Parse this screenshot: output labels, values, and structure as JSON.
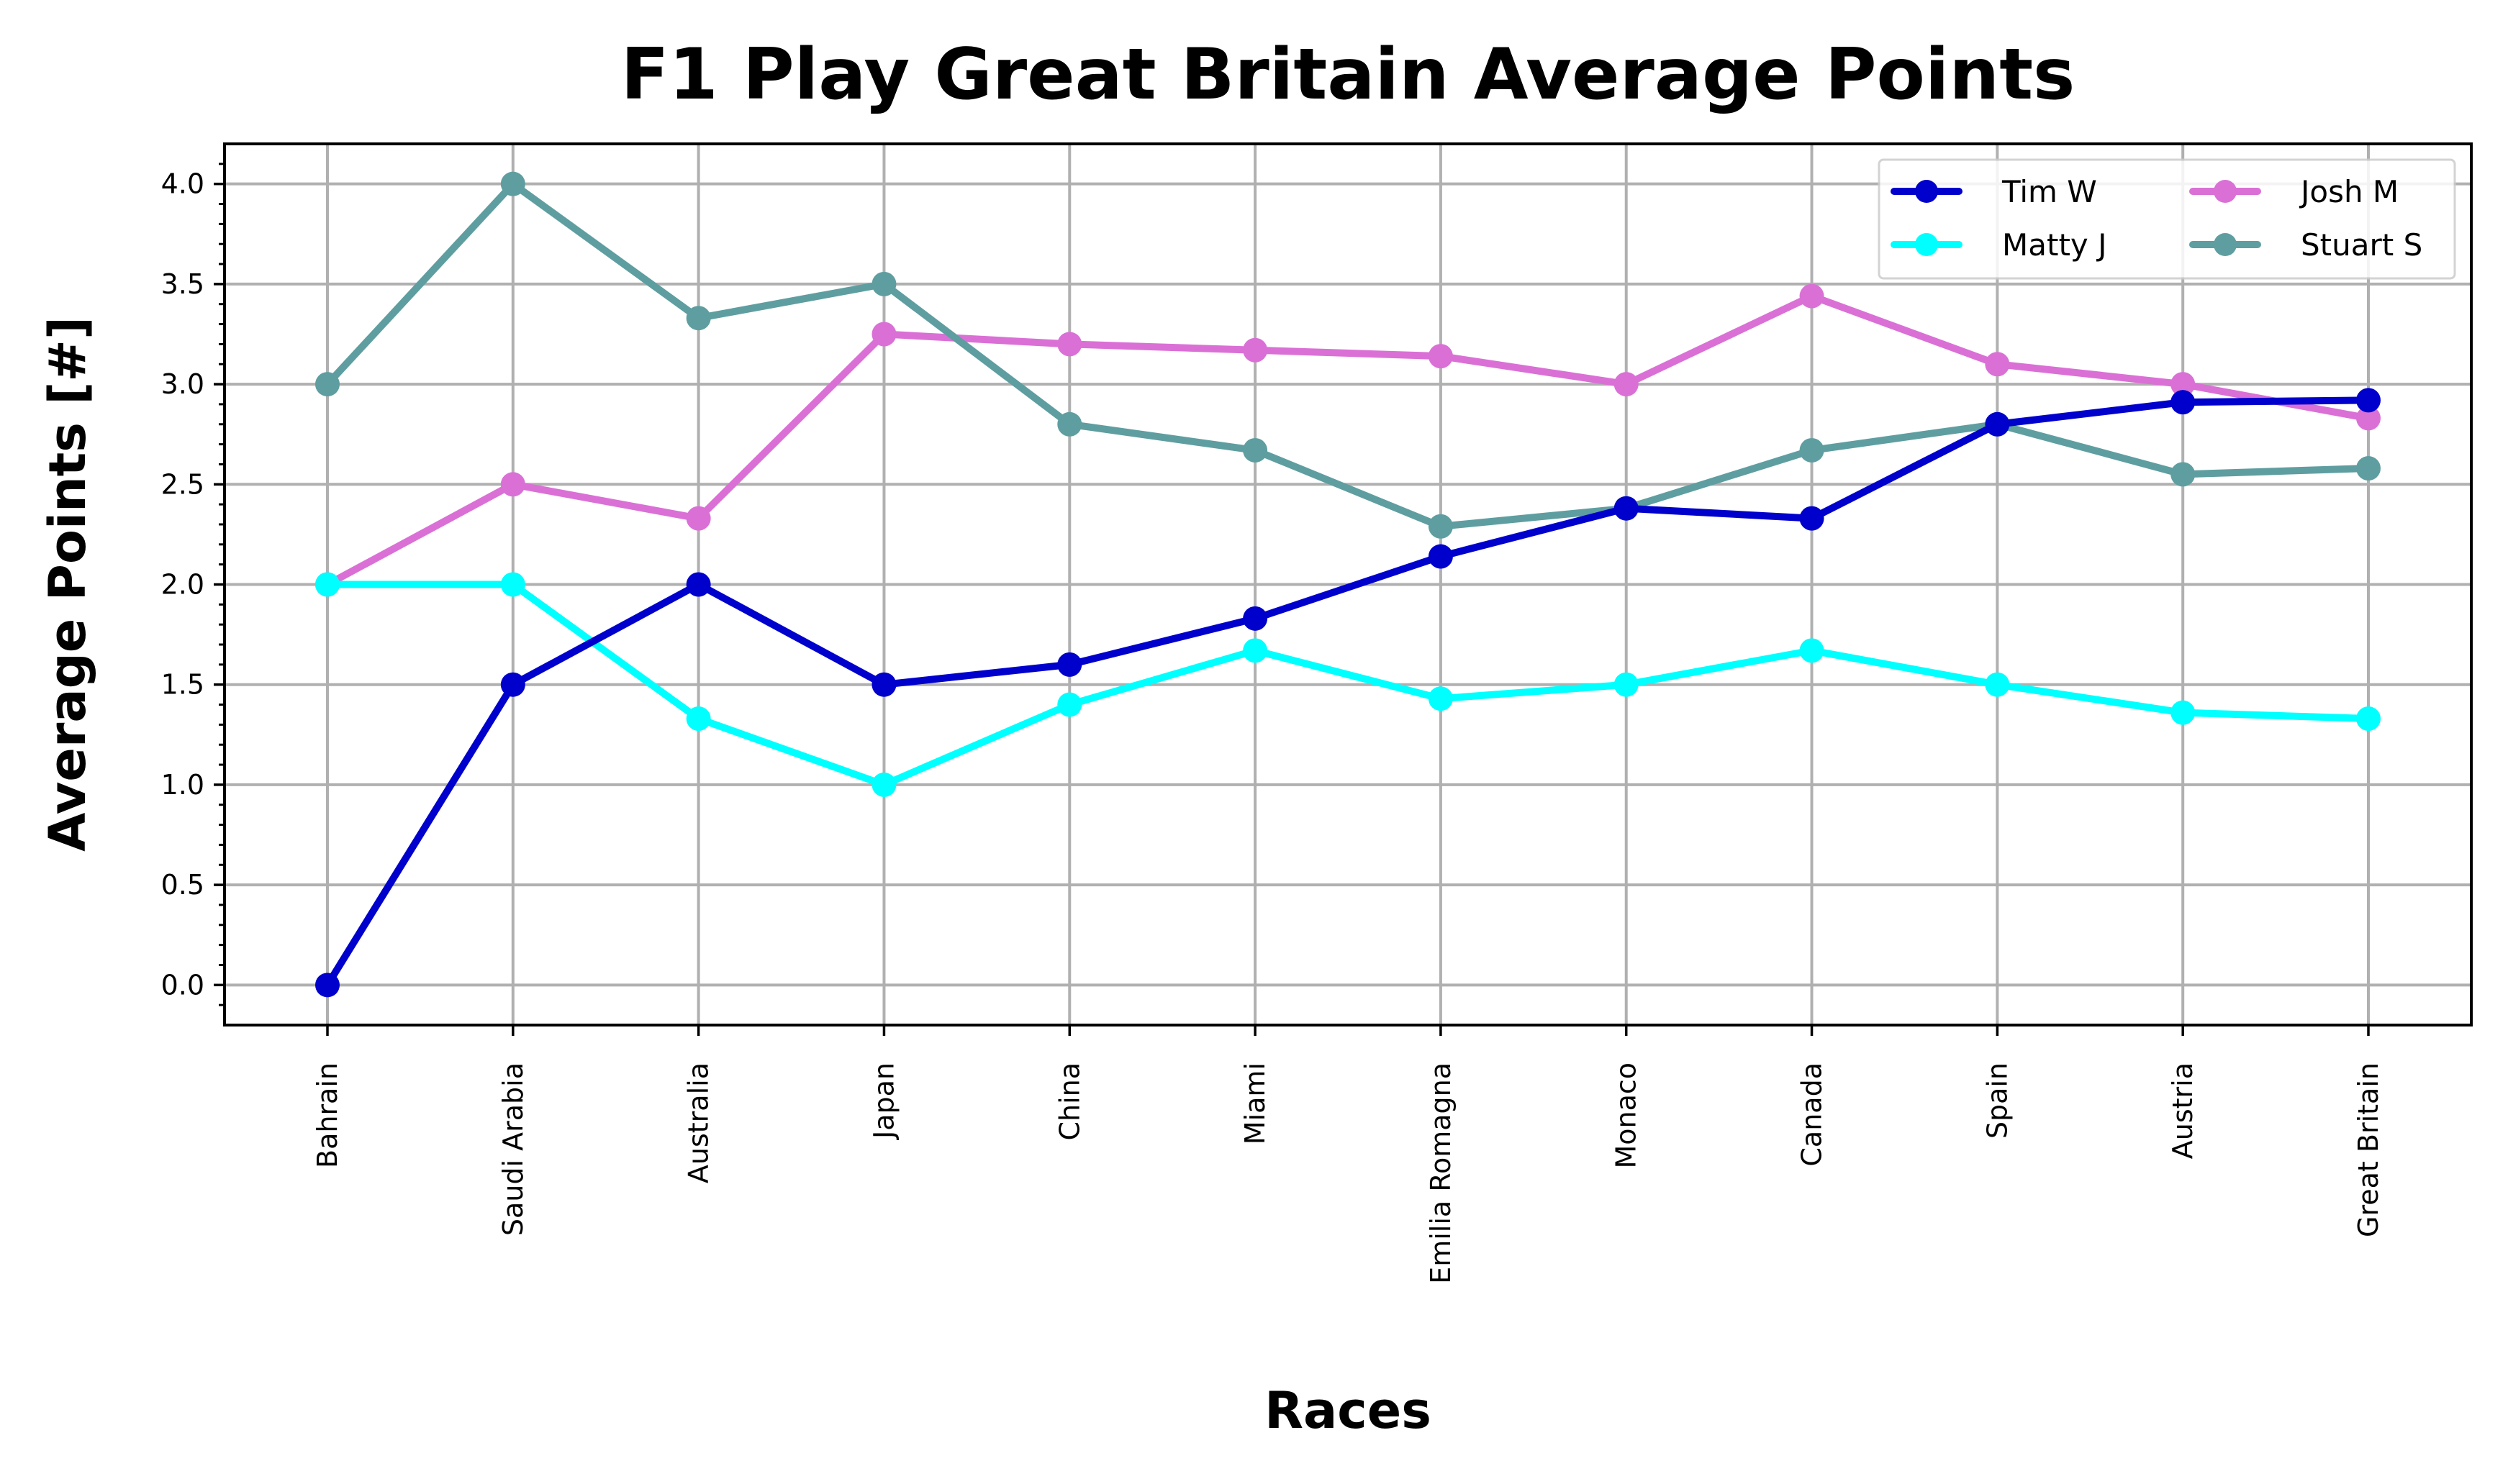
{
  "chart_data": {
    "type": "line",
    "title": "F1 Play Great Britain Average Points",
    "xlabel": "Races",
    "ylabel": "Average Points [#]",
    "categories": [
      "Bahrain",
      "Saudi Arabia",
      "Australia",
      "Japan",
      "China",
      "Miami",
      "Emilia Romagna",
      "Monaco",
      "Canada",
      "Spain",
      "Austria",
      "Great Britain"
    ],
    "ylim": [
      -0.2,
      4.2
    ],
    "yticks": [
      "0.0",
      "0.5",
      "1.0",
      "1.5",
      "2.0",
      "2.5",
      "3.0",
      "3.5",
      "4.0"
    ],
    "grid": true,
    "legend_position": "top-right",
    "legend_columns": 2,
    "series": [
      {
        "name": "Tim W",
        "color": "#0000cd",
        "values": [
          0.0,
          1.5,
          2.0,
          1.5,
          1.6,
          1.83,
          2.14,
          2.38,
          2.33,
          2.8,
          2.91,
          2.92
        ]
      },
      {
        "name": "Matty J",
        "color": "#00ffff",
        "values": [
          2.0,
          2.0,
          1.33,
          1.0,
          1.4,
          1.67,
          1.43,
          1.5,
          1.67,
          1.5,
          1.36,
          1.33
        ]
      },
      {
        "name": "Josh M",
        "color": "#da70d6",
        "values": [
          2.0,
          2.5,
          2.33,
          3.25,
          3.2,
          3.17,
          3.14,
          3.0,
          3.44,
          3.1,
          3.0,
          2.83
        ]
      },
      {
        "name": "Stuart S",
        "color": "#5f9ea0",
        "values": [
          3.0,
          4.0,
          3.33,
          3.5,
          2.8,
          2.67,
          2.29,
          2.38,
          2.67,
          2.8,
          2.55,
          2.58
        ]
      }
    ],
    "plot_order": [
      "Josh M",
      "Matty J",
      "Stuart S",
      "Tim W"
    ]
  }
}
